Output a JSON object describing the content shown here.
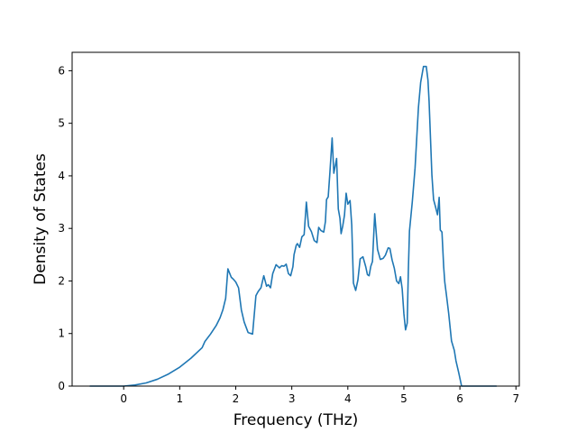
{
  "chart_data": {
    "type": "line",
    "title": "",
    "xlabel": "Frequency (THz)",
    "ylabel": "Density of States",
    "xlim": [
      -0.92,
      7.06
    ],
    "ylim": [
      0,
      6.35
    ],
    "xticks": [
      0,
      1,
      2,
      3,
      4,
      5,
      6,
      7
    ],
    "yticks": [
      0,
      1,
      2,
      3,
      4,
      5,
      6
    ],
    "grid": false,
    "legend": "none",
    "series": [
      {
        "color": "#1f77b4",
        "x": [
          -0.6,
          0.0,
          0.2,
          0.4,
          0.6,
          0.8,
          1.0,
          1.2,
          1.4,
          1.45,
          1.55,
          1.65,
          1.72,
          1.77,
          1.82,
          1.86,
          1.92,
          1.96,
          2.0,
          2.05,
          2.1,
          2.15,
          2.22,
          2.3,
          2.36,
          2.4,
          2.45,
          2.5,
          2.55,
          2.58,
          2.62,
          2.66,
          2.72,
          2.78,
          2.82,
          2.86,
          2.9,
          2.94,
          2.98,
          3.02,
          3.04,
          3.08,
          3.1,
          3.14,
          3.18,
          3.22,
          3.26,
          3.3,
          3.35,
          3.4,
          3.45,
          3.48,
          3.52,
          3.57,
          3.6,
          3.62,
          3.65,
          3.68,
          3.72,
          3.75,
          3.8,
          3.83,
          3.86,
          3.88,
          3.91,
          3.94,
          3.97,
          4.0,
          4.04,
          4.07,
          4.1,
          4.14,
          4.18,
          4.22,
          4.27,
          4.32,
          4.35,
          4.38,
          4.41,
          4.44,
          4.48,
          4.53,
          4.58,
          4.63,
          4.67,
          4.72,
          4.75,
          4.79,
          4.83,
          4.87,
          4.91,
          4.94,
          4.97,
          5.0,
          5.03,
          5.06,
          5.08,
          5.1,
          5.15,
          5.2,
          5.26,
          5.3,
          5.35,
          5.4,
          5.43,
          5.45,
          5.5,
          5.53,
          5.56,
          5.6,
          5.63,
          5.65,
          5.68,
          5.71,
          5.73,
          5.76,
          5.8,
          5.85,
          5.9,
          5.93,
          5.98,
          6.03,
          6.06,
          6.1,
          6.4,
          6.65
        ],
        "y": [
          0.0,
          0.0,
          0.02,
          0.06,
          0.13,
          0.23,
          0.36,
          0.53,
          0.73,
          0.85,
          0.99,
          1.15,
          1.3,
          1.45,
          1.67,
          2.23,
          2.07,
          2.03,
          1.98,
          1.87,
          1.45,
          1.22,
          1.02,
          0.99,
          1.72,
          1.8,
          1.87,
          2.1,
          1.9,
          1.93,
          1.87,
          2.14,
          2.31,
          2.25,
          2.29,
          2.28,
          2.32,
          2.14,
          2.1,
          2.27,
          2.5,
          2.68,
          2.71,
          2.64,
          2.84,
          2.88,
          3.5,
          3.04,
          2.94,
          2.77,
          2.73,
          3.02,
          2.96,
          2.93,
          3.13,
          3.55,
          3.6,
          4.06,
          4.72,
          4.05,
          4.33,
          3.37,
          3.19,
          2.9,
          3.05,
          3.25,
          3.67,
          3.46,
          3.53,
          3.06,
          1.96,
          1.82,
          2.02,
          2.42,
          2.46,
          2.27,
          2.12,
          2.1,
          2.28,
          2.37,
          3.28,
          2.6,
          2.41,
          2.43,
          2.49,
          2.63,
          2.62,
          2.4,
          2.24,
          2.0,
          1.95,
          2.08,
          1.85,
          1.38,
          1.07,
          1.2,
          2.2,
          2.95,
          3.5,
          4.15,
          5.3,
          5.78,
          6.08,
          6.08,
          5.82,
          5.42,
          4.02,
          3.55,
          3.43,
          3.26,
          3.59,
          2.97,
          2.93,
          2.28,
          1.98,
          1.73,
          1.38,
          0.86,
          0.68,
          0.48,
          0.25,
          0.0,
          0.0,
          0.0,
          0.0,
          0.0
        ]
      }
    ]
  }
}
